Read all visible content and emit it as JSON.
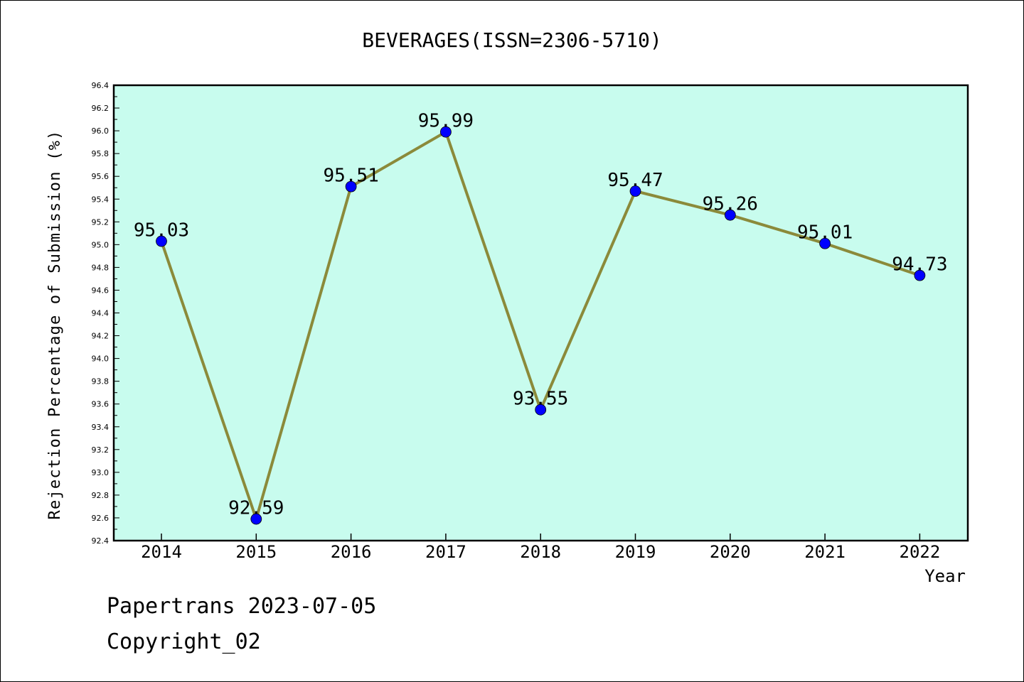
{
  "chart_data": {
    "type": "line",
    "title": "BEVERAGES(ISSN=2306-5710)",
    "xlabel": "Year",
    "ylabel": "Rejection Percentage of Submission (%)",
    "categories": [
      "2014",
      "2015",
      "2016",
      "2017",
      "2018",
      "2019",
      "2020",
      "2021",
      "2022"
    ],
    "values": [
      95.03,
      92.59,
      95.51,
      95.99,
      93.55,
      95.47,
      95.26,
      95.01,
      94.73
    ],
    "data_labels": [
      "95.03",
      "92.59",
      "95.51",
      "95.99",
      "93.55",
      "95.47",
      "95.26",
      "95.01",
      "94.73"
    ],
    "ylim": [
      92.4,
      96.4
    ],
    "yticks": [
      "92.4",
      "92.6",
      "92.8",
      "93.0",
      "93.2",
      "93.4",
      "93.6",
      "93.8",
      "94.0",
      "94.2",
      "94.4",
      "94.6",
      "94.8",
      "95.0",
      "95.2",
      "95.4",
      "95.6",
      "95.8",
      "96.0",
      "96.2",
      "96.4"
    ],
    "grid": false,
    "colors": {
      "plot_background": "#c8fcee",
      "line": "#8b8a3a",
      "marker": "#0000ff"
    }
  },
  "footer": {
    "line1": "Papertrans 2023-07-05",
    "line2": "Copyright_02"
  }
}
